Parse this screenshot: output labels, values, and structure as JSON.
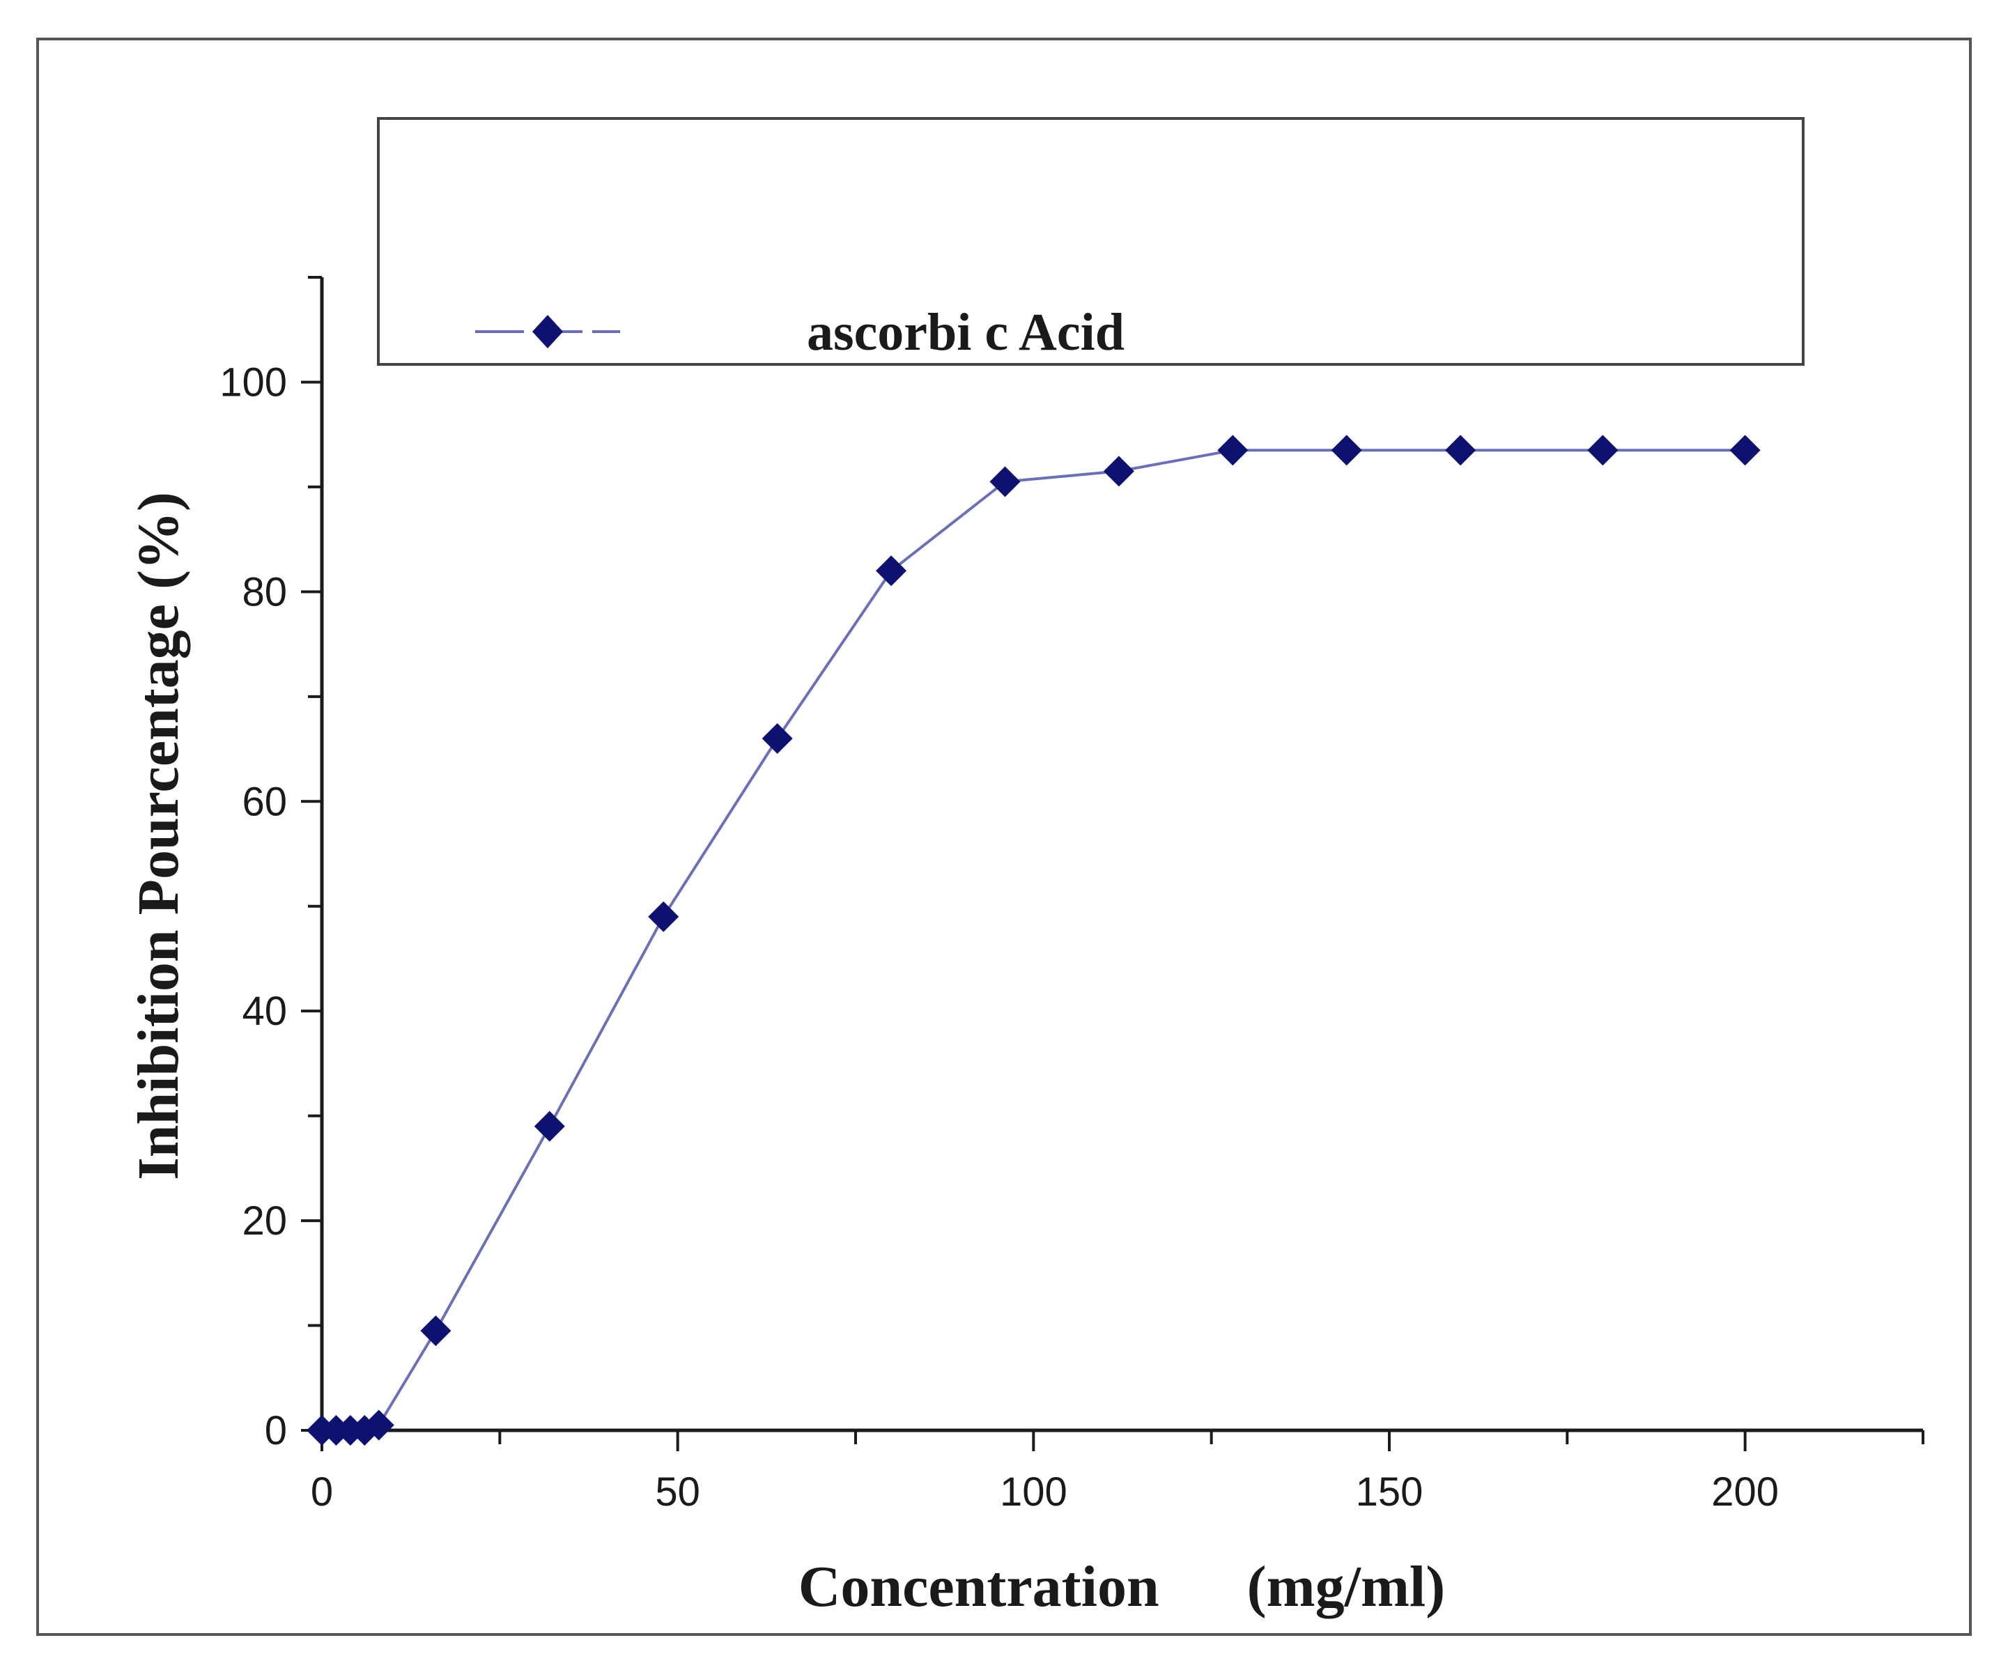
{
  "chart_data": {
    "type": "line",
    "xlabel": "Concentration      (mg/ml)",
    "ylabel": "Inhibition Pourcentage (%)",
    "xlim": [
      0,
      225
    ],
    "ylim": [
      0,
      110
    ],
    "x_ticks": [
      0,
      50,
      100,
      150,
      200
    ],
    "y_ticks": [
      0,
      20,
      40,
      60,
      80,
      100
    ],
    "x_tick_labels": [
      "0",
      "50",
      "100",
      "150",
      "200"
    ],
    "y_tick_labels": [
      "0",
      "20",
      "40",
      "60",
      "80",
      "100"
    ],
    "grid": false,
    "legend_position": "top",
    "series": [
      {
        "name": "ascorbi c Acid",
        "color": "#6a70b8",
        "marker": "diamond",
        "marker_color": "#0d1270",
        "x": [
          0,
          2,
          4,
          6,
          8,
          16,
          32,
          48,
          64,
          80,
          96,
          112,
          128,
          144,
          160,
          180,
          200
        ],
        "y": [
          0,
          0,
          0,
          0,
          0.5,
          9.5,
          29,
          49,
          66,
          82,
          90.5,
          91.5,
          93.5,
          93.5,
          93.5,
          93.5,
          93.5
        ]
      }
    ]
  }
}
